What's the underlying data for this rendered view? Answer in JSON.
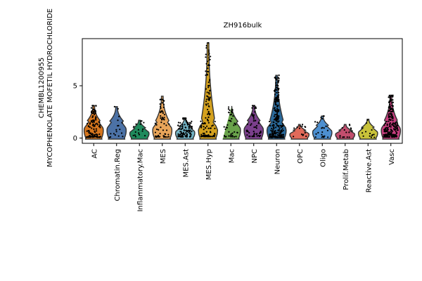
{
  "chart_data": {
    "type": "violin",
    "title": "ZH916bulk",
    "ylabel_lines": [
      "CHEMBL1200955",
      "MYCOPHENOLATE MOFETIL HYDROCHLORIDE"
    ],
    "xlabel": "",
    "ylim": [
      -0.5,
      9.5
    ],
    "yticks": [
      0,
      5
    ],
    "grid": false,
    "legend": "none",
    "categories": [
      "AC",
      "Chromatin.Reg",
      "Inflammatory.Mac",
      "MES",
      "MES.Ast",
      "MES.Hyp",
      "Mac",
      "NPC",
      "Neuron",
      "OPC",
      "Oligo",
      "Prolif.Metab",
      "Reactive.Ast",
      "Vasc"
    ],
    "colors": [
      "#d6761e",
      "#4c72a6",
      "#1f8a5c",
      "#e8a55a",
      "#73b3c5",
      "#d4a11e",
      "#6aa34b",
      "#7b3f8c",
      "#2a6a9c",
      "#e06a5a",
      "#4d8fd0",
      "#c24e6e",
      "#c8c23a",
      "#c63e7e"
    ],
    "max": [
      3.1,
      3.0,
      1.7,
      4.0,
      1.9,
      9.1,
      3.2,
      3.1,
      6.0,
      1.3,
      2.1,
      1.3,
      1.8,
      4.1
    ],
    "median": [
      0.4,
      0.3,
      0.5,
      0.5,
      0.6,
      0.7,
      0.6,
      0.8,
      0.3,
      0.7,
      0.4,
      0.4,
      0.3,
      0.5
    ],
    "points_count": [
      120,
      18,
      16,
      60,
      110,
      140,
      45,
      55,
      260,
      14,
      22,
      16,
      14,
      220
    ]
  }
}
